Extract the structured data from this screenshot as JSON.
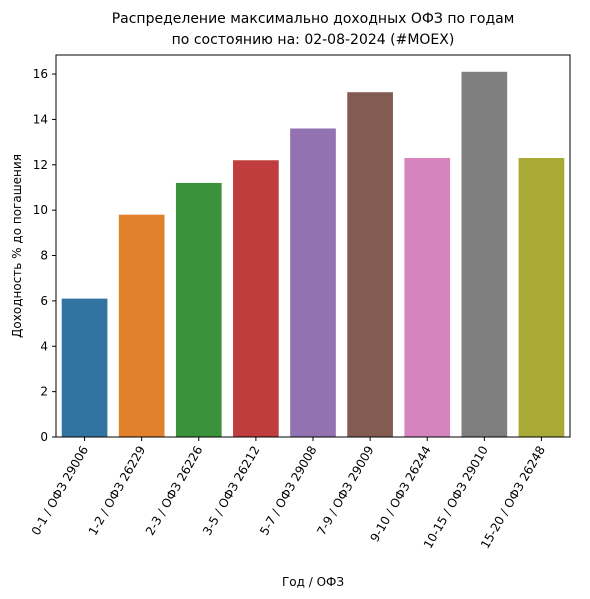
{
  "chart_data": {
    "type": "bar",
    "title": "Распределение максимально доходных ОФЗ по годам",
    "subtitle": "по состоянию на: 02-08-2024 (#MOEX)",
    "xlabel": "Год / ОФЗ",
    "ylabel": "Доходность % до погашения",
    "categories": [
      "0-1 / ОФЗ 29006",
      "1-2 / ОФЗ 26229",
      "2-3 / ОФЗ 26226",
      "3-5 / ОФЗ 26212",
      "5-7 / ОФЗ 29008",
      "7-9 / ОФЗ 29009",
      "9-10 / ОФЗ 26244",
      "10-15 / ОФЗ 29010",
      "15-20 / ОФЗ 26248"
    ],
    "values": [
      6.1,
      9.8,
      11.2,
      12.2,
      13.6,
      15.2,
      12.3,
      16.1,
      12.3
    ],
    "colors": [
      "#3274a1",
      "#e1812c",
      "#3a923a",
      "#c03d3e",
      "#9372b2",
      "#845b53",
      "#d684bd",
      "#7f7f7f",
      "#a9aa35"
    ],
    "ylim": [
      0,
      16.84
    ],
    "yticks": [
      0,
      2,
      4,
      6,
      8,
      10,
      12,
      14,
      16
    ],
    "grid": false
  }
}
